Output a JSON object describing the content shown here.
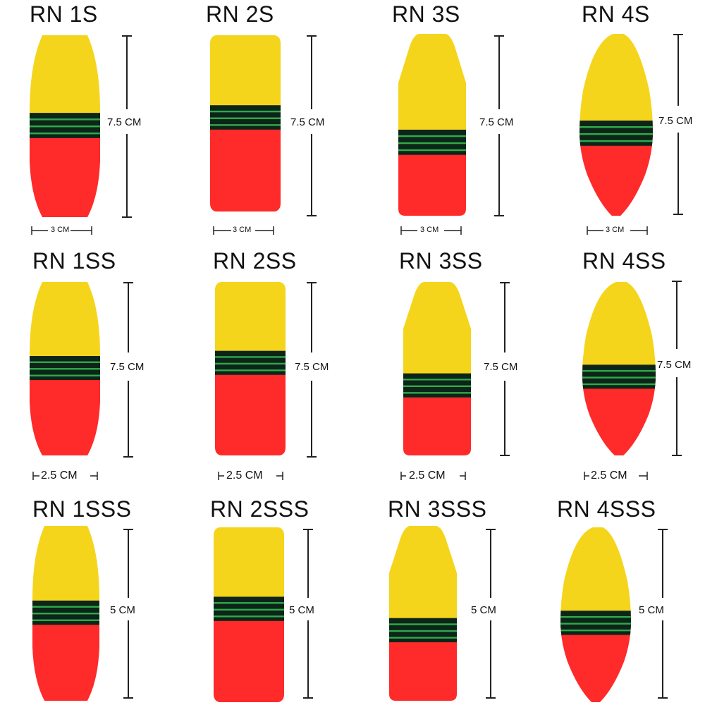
{
  "colors": {
    "top": "#f5d51c",
    "bottom": "#ff2a2a",
    "band": "#0d2418",
    "band_stripe": "#2faa4a",
    "ink": "#222222"
  },
  "rows": [
    {
      "height_label": "7.5 CM",
      "width_label": "3 CM",
      "floats": [
        {
          "model": "RN 1S",
          "shape": "barrel"
        },
        {
          "model": "RN 2S",
          "shape": "flat"
        },
        {
          "model": "RN 3S",
          "shape": "bullet"
        },
        {
          "model": "RN 4S",
          "shape": "spindle"
        }
      ]
    },
    {
      "height_label": "7.5 CM",
      "width_label": "2.5 CM",
      "floats": [
        {
          "model": "RN 1SS",
          "shape": "barrel"
        },
        {
          "model": "RN 2SS",
          "shape": "flat"
        },
        {
          "model": "RN 3SS",
          "shape": "bullet"
        },
        {
          "model": "RN 4SS",
          "shape": "spindle"
        }
      ]
    },
    {
      "height_label": "5 CM",
      "width_label": "",
      "floats": [
        {
          "model": "RN 1SSS",
          "shape": "barrel"
        },
        {
          "model": "RN 2SSS",
          "shape": "flat"
        },
        {
          "model": "RN 3SSS",
          "shape": "bullet"
        },
        {
          "model": "RN 4SSS",
          "shape": "spindle"
        }
      ]
    }
  ]
}
